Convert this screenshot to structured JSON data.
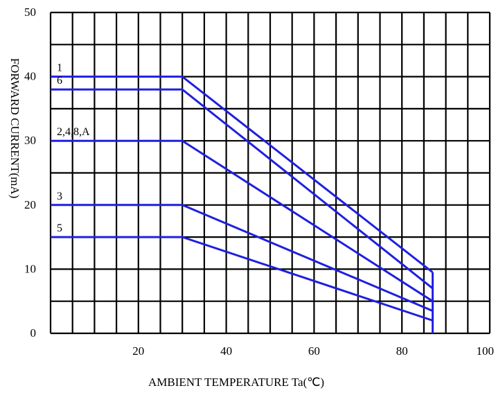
{
  "chart_data": {
    "type": "line",
    "title": "",
    "xlabel": "AMBIENT TEMPERATURE Ta(℃)",
    "ylabel": "FORWARD CURRENT(mA)",
    "xlim": [
      0,
      100
    ],
    "ylim": [
      0,
      50
    ],
    "x_ticks": [
      "20",
      "40",
      "60",
      "80",
      "100"
    ],
    "y_ticks": [
      "0",
      "10",
      "20",
      "30",
      "40",
      "50"
    ],
    "grid": true,
    "line_color": "#1f1fe0",
    "series": [
      {
        "name": "1",
        "points": [
          [
            0,
            40
          ],
          [
            30,
            40
          ],
          [
            87,
            9.5
          ]
        ]
      },
      {
        "name": "6",
        "points": [
          [
            0,
            38
          ],
          [
            30,
            38
          ],
          [
            87,
            7
          ]
        ]
      },
      {
        "name": "2,4,8,A",
        "points": [
          [
            0,
            30
          ],
          [
            30,
            30
          ],
          [
            87,
            5
          ]
        ]
      },
      {
        "name": "3",
        "points": [
          [
            0,
            20
          ],
          [
            30,
            20
          ],
          [
            87,
            3.5
          ]
        ]
      },
      {
        "name": "5",
        "points": [
          [
            0,
            15
          ],
          [
            30,
            15
          ],
          [
            87,
            2
          ]
        ]
      }
    ],
    "end_drop": {
      "x": 87,
      "from": 9.5,
      "to": 0
    }
  }
}
